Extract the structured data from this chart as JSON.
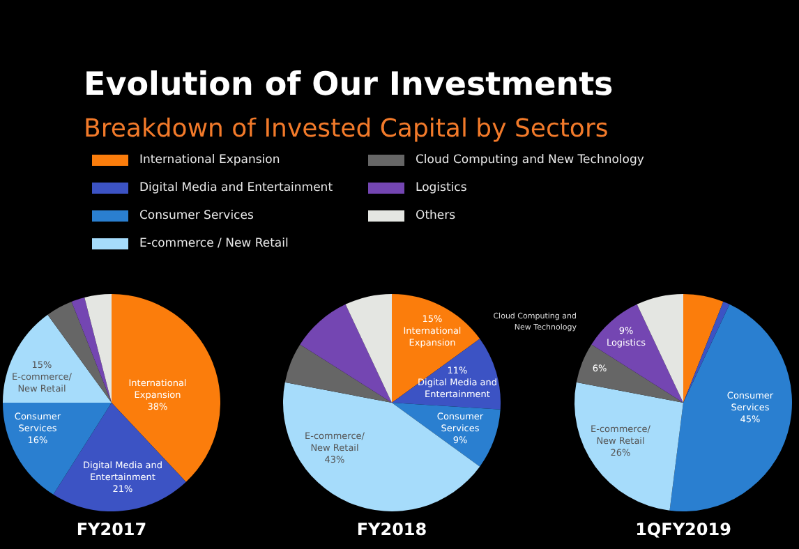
{
  "chart_data": [
    {
      "type": "pie",
      "title": "Evolution of Our Investments",
      "subtitle": "Breakdown of Invested Capital by Sectors",
      "xlabel": "FY2017",
      "legend": "top",
      "categories": [
        "International Expansion",
        "Digital Media and Entertainment",
        "Consumer Services",
        "E-commerce / New Retail",
        "Cloud Computing and New Technology",
        "Logistics",
        "Others"
      ],
      "values": [
        38,
        21,
        16,
        15,
        4,
        2,
        4
      ],
      "colors": [
        "#fb7d0c",
        "#3c53c4",
        "#2a7fd0",
        "#a6dcfb",
        "#666666",
        "#7446b2",
        "#e4e6e2"
      ],
      "value_labels": [
        "International\nExpansion\n38%",
        "Digital Media and\nEntertainment\n21%",
        "Consumer\nServices\n16%",
        "15%\nE-commerce/\nNew Retail",
        null,
        null,
        null
      ]
    },
    {
      "type": "pie",
      "xlabel": "FY2018",
      "legend": false,
      "categories": [
        null,
        null,
        null,
        null,
        null,
        null,
        null
      ],
      "values": [
        15,
        11,
        9,
        43,
        6,
        9,
        7
      ],
      "colors": [
        "#fb7d0c",
        "#3c53c4",
        "#2a7fd0",
        "#a6dcfb",
        "#666666",
        "#7446b2",
        "#e4e6e2"
      ],
      "value_labels": [
        "15%\nInternational\nExpansion",
        "11%\nDigital Media and\nEntertainment",
        "Consumer\nServices\n9%",
        "E-commerce/\nNew Retail\n43%",
        null,
        null,
        null
      ]
    },
    {
      "type": "pie",
      "xlabel": "1QFY2019",
      "legend": false,
      "categories": [
        null,
        null,
        null,
        null,
        null,
        null,
        null
      ],
      "values": [
        6,
        1,
        45,
        26,
        6,
        9,
        7
      ],
      "colors": [
        "#fb7d0c",
        "#3c53c4",
        "#2a7fd0",
        "#a6dcfb",
        "#666666",
        "#7446b2",
        "#e4e6e2"
      ],
      "value_labels": [
        null,
        null,
        "Consumer\nServices\n45%",
        "E-commerce/\nNew Retail\n26%",
        "6%",
        "9%\nLogistics",
        null
      ],
      "annotations": [
        "Cloud Computing and\nNew Technology"
      ]
    }
  ]
}
